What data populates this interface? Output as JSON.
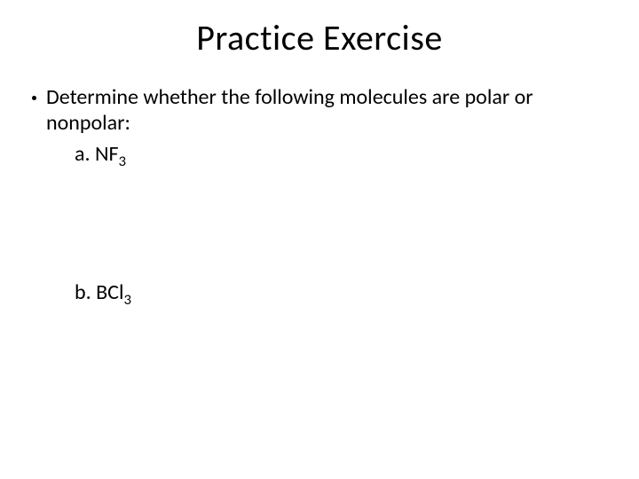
{
  "title": "Practice Exercise",
  "prompt": "Determine whether the following molecules are polar or nonpolar:",
  "items": {
    "a": {
      "label": "a.",
      "formula_base": "NF",
      "formula_sub": "3"
    },
    "b": {
      "label": "b.",
      "formula_base": "BCl",
      "formula_sub": "3"
    }
  },
  "colors": {
    "background": "#ffffff",
    "text": "#000000"
  },
  "typography": {
    "title_fontsize": 40,
    "body_fontsize": 24,
    "font_family": "Calibri"
  }
}
